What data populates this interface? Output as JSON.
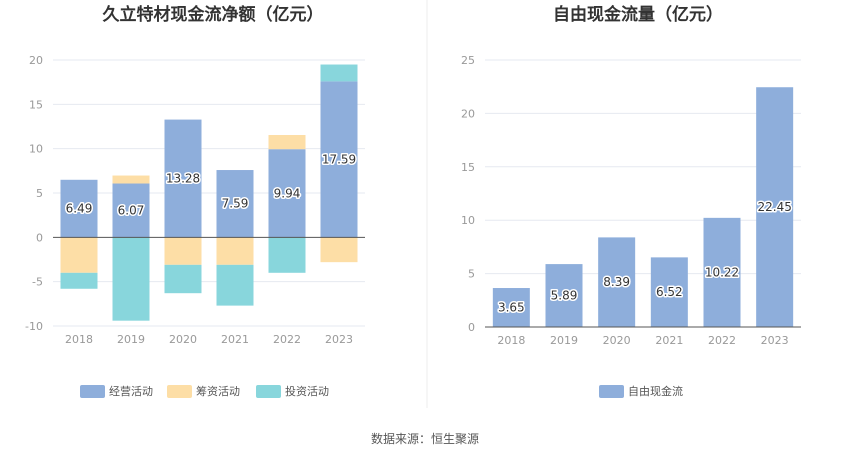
{
  "source_text": "数据来源：恒生聚源",
  "chart_data": [
    {
      "type": "bar",
      "stacked": true,
      "title": "久立特材现金流净额（亿元）",
      "categories": [
        "2018",
        "2019",
        "2020",
        "2021",
        "2022",
        "2023"
      ],
      "ylim": [
        -10,
        20
      ],
      "yticks": [
        "20",
        "15",
        "10",
        "5",
        "0",
        "-5",
        "-10"
      ],
      "grid": true,
      "legend_position": "bottom",
      "series": [
        {
          "name": "经营活动",
          "color": "#8eaedb",
          "values": [
            6.49,
            6.07,
            13.28,
            7.59,
            9.94,
            17.59
          ],
          "labels": [
            "6.49",
            "6.07",
            "13.28",
            "7.59",
            "9.94",
            "17.59"
          ]
        },
        {
          "name": "筹资活动",
          "color": "#fddea6",
          "values": [
            -4.0,
            0.9,
            -3.1,
            -3.1,
            1.6,
            -2.8
          ]
        },
        {
          "name": "投资活动",
          "color": "#88d6dc",
          "values": [
            -1.8,
            -9.4,
            -3.2,
            -4.6,
            -4.0,
            1.9
          ]
        }
      ]
    },
    {
      "type": "bar",
      "title": "自由现金流量（亿元）",
      "categories": [
        "2018",
        "2019",
        "2020",
        "2021",
        "2022",
        "2023"
      ],
      "ylim": [
        0,
        25
      ],
      "yticks": [
        "25",
        "20",
        "15",
        "10",
        "5",
        "0"
      ],
      "grid": true,
      "legend_position": "bottom",
      "series": [
        {
          "name": "自由现金流",
          "color": "#8eaedb",
          "values": [
            3.65,
            5.89,
            8.39,
            6.52,
            10.22,
            22.45
          ],
          "labels": [
            "3.65",
            "5.89",
            "8.39",
            "6.52",
            "10.22",
            "22.45"
          ]
        }
      ]
    }
  ]
}
